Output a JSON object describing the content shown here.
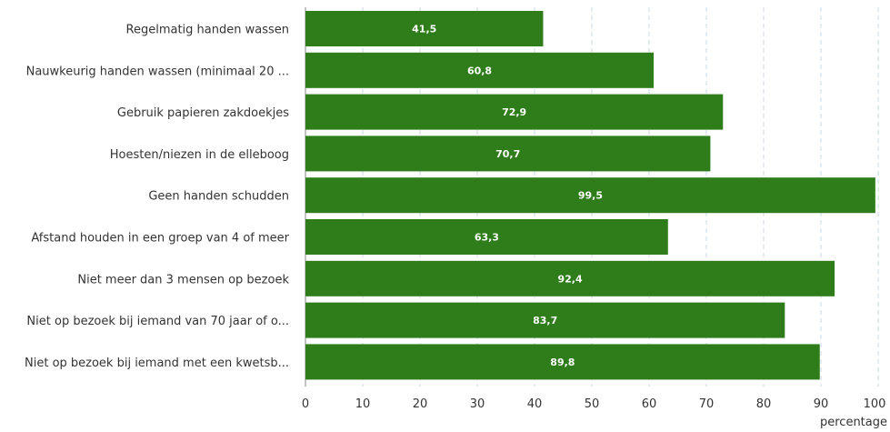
{
  "chart_data": {
    "type": "bar",
    "orientation": "horizontal",
    "categories": [
      "Regelmatig handen wassen",
      "Nauwkeurig handen wassen (minimaal 20 ...",
      "Gebruik papieren zakdoekjes",
      "Hoesten/niezen in de elleboog",
      "Geen handen schudden",
      "Afstand houden in een groep van 4 of meer",
      "Niet meer dan 3 mensen op bezoek",
      "Niet op bezoek bij iemand van 70 jaar of o...",
      "Niet op bezoek bij iemand met een kwetsb..."
    ],
    "values": [
      41.5,
      60.8,
      72.9,
      70.7,
      99.5,
      63.3,
      92.4,
      83.7,
      89.8
    ],
    "data_labels": [
      "41,5",
      "60,8",
      "72,9",
      "70,7",
      "99,5",
      "63,3",
      "92,4",
      "83,7",
      "89,8"
    ],
    "xlabel": "percentage",
    "xlim": [
      0,
      100
    ],
    "xticks": [
      "0",
      "10",
      "20",
      "30",
      "40",
      "50",
      "60",
      "70",
      "80",
      "90",
      "100"
    ],
    "grid": "vertical dashed",
    "bar_color": "#2e7d1a",
    "grid_color": "#c9d9e6"
  }
}
